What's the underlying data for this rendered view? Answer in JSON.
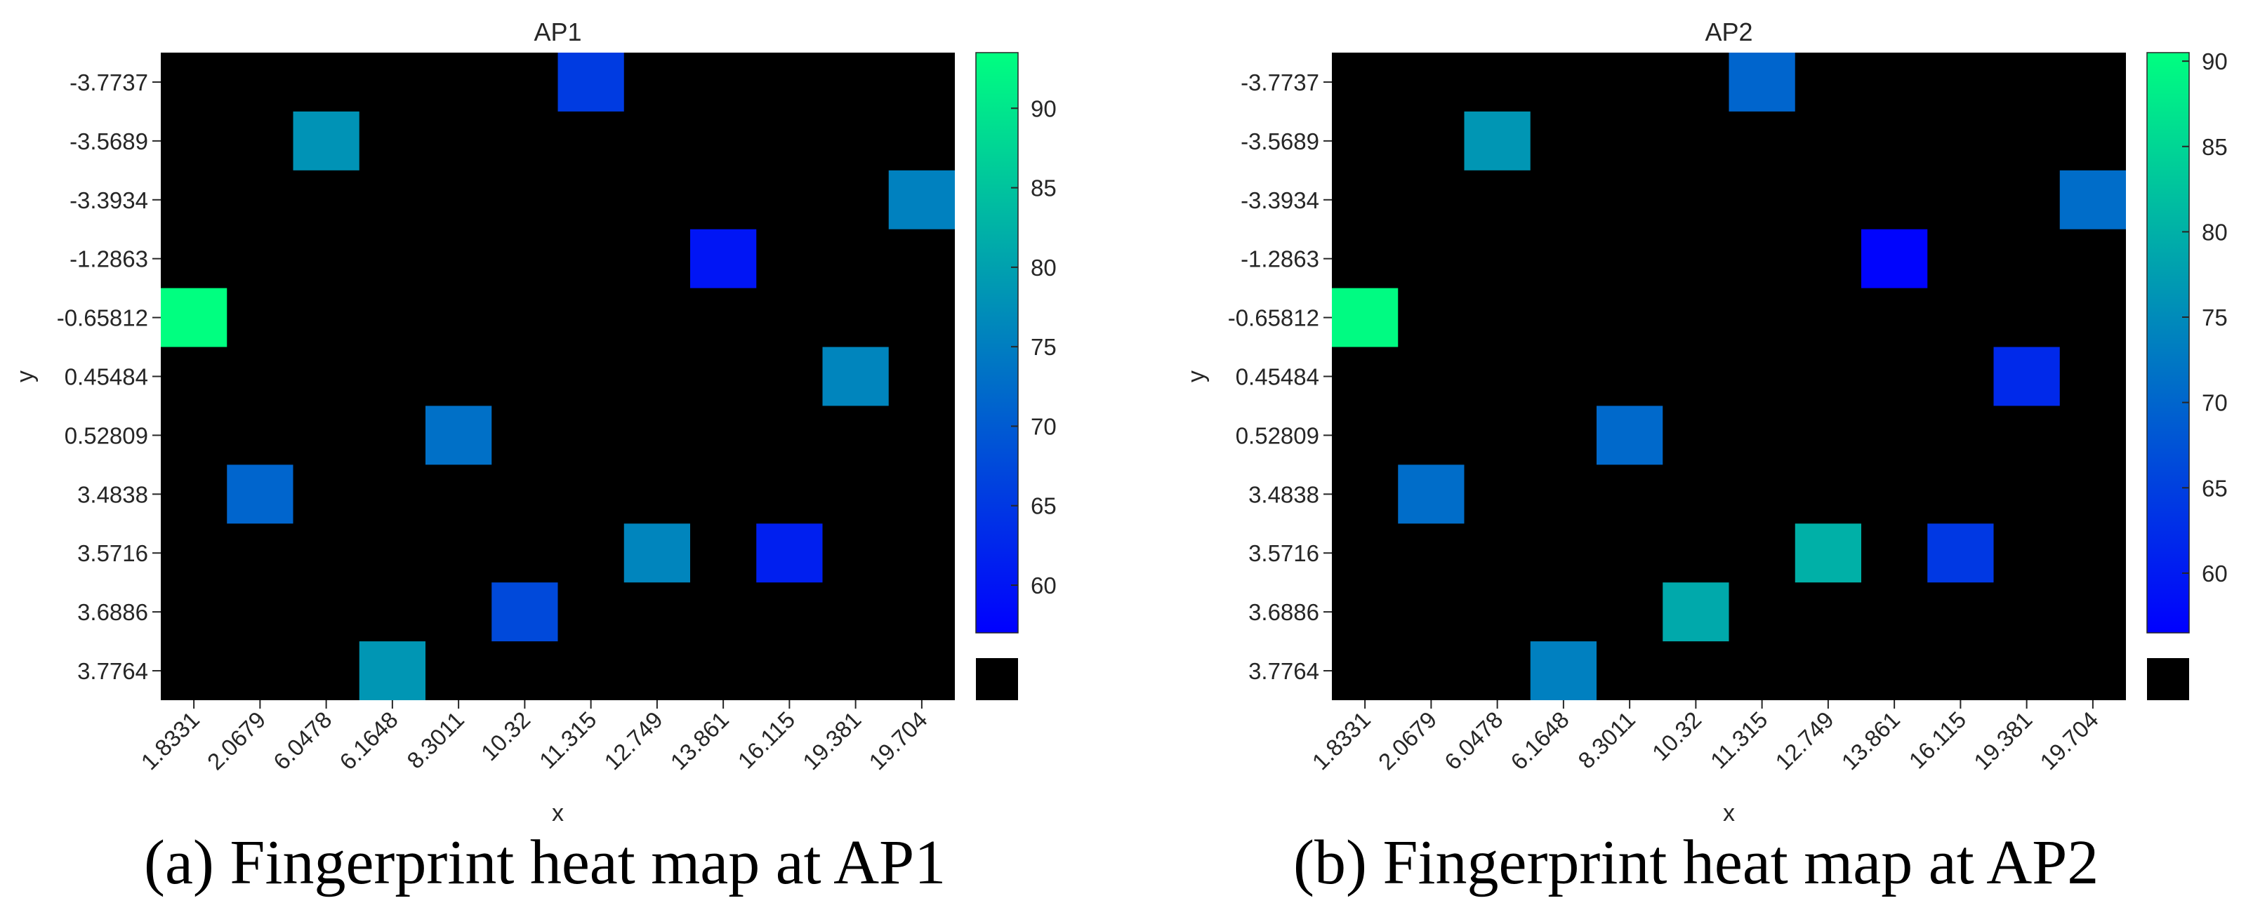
{
  "chart_data": [
    {
      "type": "heatmap",
      "title": "AP1",
      "xlabel": "x",
      "ylabel": "y",
      "x_categories": [
        "1.8331",
        "2.0679",
        "6.0478",
        "6.1648",
        "8.3011",
        "10.32",
        "11.315",
        "12.749",
        "13.861",
        "16.115",
        "19.381",
        "19.704"
      ],
      "y_categories": [
        "-3.7737",
        "-3.5689",
        "-3.3934",
        "-1.2863",
        "-0.65812",
        "0.45484",
        "0.52809",
        "3.4838",
        "3.5716",
        "3.6886",
        "3.7764"
      ],
      "cells": [
        {
          "x": "1.8331",
          "y": "-0.65812",
          "value": 93.5
        },
        {
          "x": "2.0679",
          "y": "3.4838",
          "value": 71.5
        },
        {
          "x": "6.0478",
          "y": "-3.5689",
          "value": 78
        },
        {
          "x": "6.1648",
          "y": "3.7764",
          "value": 78.5
        },
        {
          "x": "8.3011",
          "y": "0.52809",
          "value": 73
        },
        {
          "x": "10.32",
          "y": "3.6886",
          "value": 67.5
        },
        {
          "x": "11.315",
          "y": "-3.7737",
          "value": 65.5
        },
        {
          "x": "12.749",
          "y": "3.5716",
          "value": 76
        },
        {
          "x": "13.861",
          "y": "-1.2863",
          "value": 60
        },
        {
          "x": "16.115",
          "y": "3.5716",
          "value": 61.5
        },
        {
          "x": "19.381",
          "y": "0.45484",
          "value": 76
        },
        {
          "x": "19.704",
          "y": "-3.3934",
          "value": 75.5
        }
      ],
      "colorbar": {
        "min": 57,
        "max": 93.5,
        "ticks": [
          60,
          65,
          70,
          75,
          80,
          85,
          90
        ],
        "no_data_color": "#000000"
      },
      "colormap": [
        "#0000ff",
        "#00ff80"
      ],
      "background_color": "#000000"
    },
    {
      "type": "heatmap",
      "title": "AP2",
      "xlabel": "x",
      "ylabel": "y",
      "x_categories": [
        "1.8331",
        "2.0679",
        "6.0478",
        "6.1648",
        "8.3011",
        "10.32",
        "11.315",
        "12.749",
        "13.861",
        "16.115",
        "19.381",
        "19.704"
      ],
      "y_categories": [
        "-3.7737",
        "-3.5689",
        "-3.3934",
        "-1.2863",
        "-0.65812",
        "0.45484",
        "0.52809",
        "3.4838",
        "3.5716",
        "3.6886",
        "3.7764"
      ],
      "cells": [
        {
          "x": "1.8331",
          "y": "-0.65812",
          "value": 90
        },
        {
          "x": "2.0679",
          "y": "3.4838",
          "value": 71
        },
        {
          "x": "6.0478",
          "y": "-3.5689",
          "value": 76.5
        },
        {
          "x": "6.1648",
          "y": "3.7764",
          "value": 73.5
        },
        {
          "x": "8.3011",
          "y": "0.52809",
          "value": 70.5
        },
        {
          "x": "10.32",
          "y": "3.6886",
          "value": 79
        },
        {
          "x": "11.315",
          "y": "-3.7737",
          "value": 70
        },
        {
          "x": "12.749",
          "y": "3.5716",
          "value": 80
        },
        {
          "x": "13.861",
          "y": "-1.2863",
          "value": 57
        },
        {
          "x": "16.115",
          "y": "3.5716",
          "value": 64
        },
        {
          "x": "19.381",
          "y": "0.45484",
          "value": 62
        },
        {
          "x": "19.704",
          "y": "-3.3934",
          "value": 71
        }
      ],
      "colorbar": {
        "min": 56.5,
        "max": 90.5,
        "ticks": [
          60,
          65,
          70,
          75,
          80,
          85,
          90
        ],
        "no_data_color": "#000000"
      },
      "colormap": [
        "#0000ff",
        "#00ff80"
      ],
      "background_color": "#000000"
    }
  ],
  "captions": {
    "a": "(a) Fingerprint heat map at AP1",
    "b": "(b) Fingerprint heat map at AP2"
  }
}
